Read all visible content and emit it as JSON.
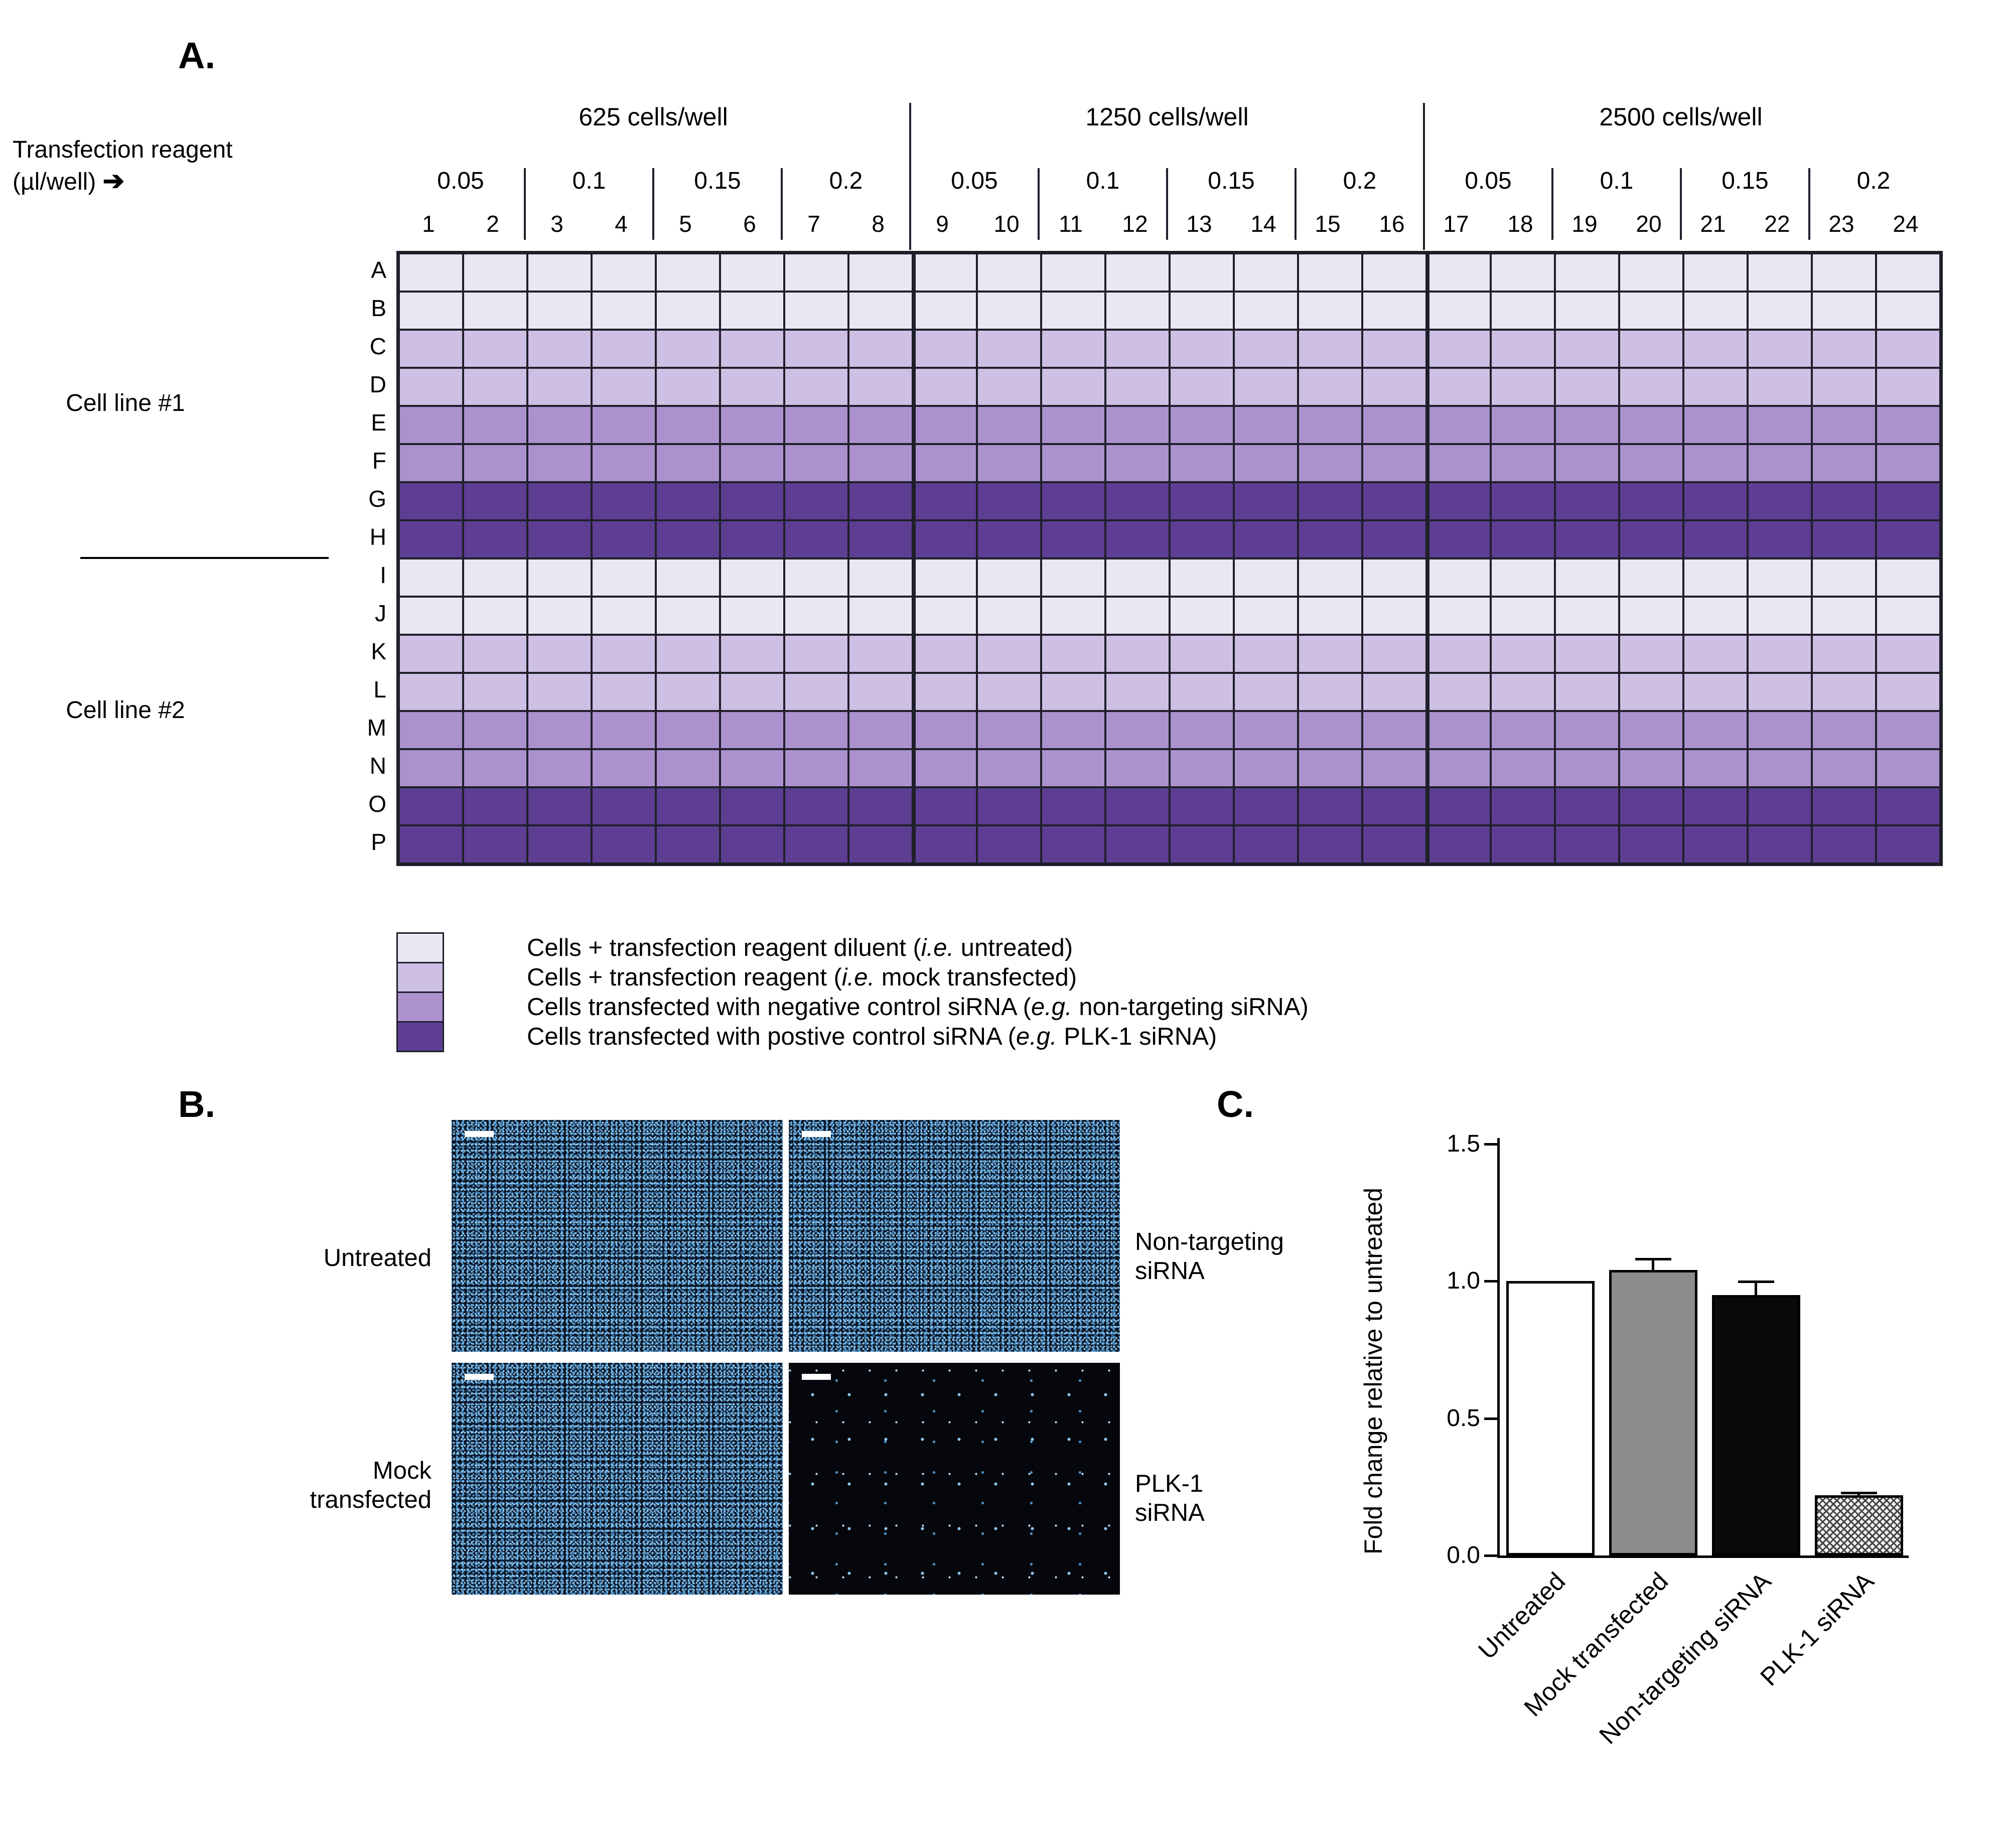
{
  "panelA": {
    "label": "A.",
    "reagent_label_line1": "Transfection reagent",
    "reagent_label_line2": "(µl/well)",
    "reagent_arrow": "➔",
    "cell_line_labels": [
      "Cell line #1",
      "Cell line #2"
    ],
    "category_colors": {
      "untreated": "#EAE6F4",
      "mock": "#CEC0E4",
      "negative_control": "#AB92CE",
      "positive_control": "#5D3E92"
    },
    "legend": [
      {
        "color_key": "untreated",
        "pre": "Cells + transfection reagent diluent (",
        "italic": "i.e.",
        "post": " untreated)"
      },
      {
        "color_key": "mock",
        "pre": "Cells + transfection reagent (",
        "italic": "i.e.",
        "post": " mock transfected)"
      },
      {
        "color_key": "negative_control",
        "pre": "Cells transfected with negative control siRNA (",
        "italic": "e.g.",
        "post": " non-targeting siRNA)"
      },
      {
        "color_key": "positive_control",
        "pre": "Cells transfected with postive control siRNA (",
        "italic": "e.g.",
        "post": " PLK-1 siRNA)"
      }
    ]
  },
  "panelB": {
    "label": "B.",
    "left_labels": [
      {
        "lines": [
          "Untreated"
        ]
      },
      {
        "lines": [
          "Mock",
          "transfected"
        ]
      }
    ],
    "right_labels": [
      {
        "lines": [
          "Non-targeting",
          "siRNA"
        ]
      },
      {
        "lines": [
          "PLK-1",
          "siRNA"
        ]
      }
    ],
    "images": [
      {
        "name": "untreated",
        "density": "dense"
      },
      {
        "name": "non-targeting-sirna",
        "density": "dense"
      },
      {
        "name": "mock-transfected",
        "density": "dense"
      },
      {
        "name": "plk1-sirna",
        "density": "sparse"
      }
    ]
  },
  "panelC": {
    "label": "C."
  },
  "chart_data": [
    {
      "type": "heatmap",
      "rows": [
        "A",
        "B",
        "C",
        "D",
        "E",
        "F",
        "G",
        "H",
        "I",
        "J",
        "K",
        "L",
        "M",
        "N",
        "O",
        "P"
      ],
      "columns": [
        1,
        2,
        3,
        4,
        5,
        6,
        7,
        8,
        9,
        10,
        11,
        12,
        13,
        14,
        15,
        16,
        17,
        18,
        19,
        20,
        21,
        22,
        23,
        24
      ],
      "density_groups": [
        "625 cells/well",
        "1250 cells/well",
        "2500 cells/well"
      ],
      "reagent_volumes_ul_per_well": [
        "0.05",
        "0.1",
        "0.15",
        "0.2"
      ],
      "row_conditions": [
        "untreated",
        "untreated",
        "mock",
        "mock",
        "negative_control",
        "negative_control",
        "positive_control",
        "positive_control",
        "untreated",
        "untreated",
        "mock",
        "mock",
        "negative_control",
        "negative_control",
        "positive_control",
        "positive_control"
      ],
      "row_group_labels": [
        "Cell line #1",
        "Cell line #2"
      ]
    },
    {
      "type": "bar",
      "categories": [
        "Untreated",
        "Mock transfected",
        "Non-targeting siRNA",
        "PLK-1 siRNA"
      ],
      "values": [
        1.0,
        1.04,
        0.95,
        0.22
      ],
      "errors": [
        0,
        0.04,
        0.05,
        0.01
      ],
      "bar_styles": [
        "white",
        "gray",
        "black",
        "hatched"
      ],
      "ylabel": "Fold change relative to untreated",
      "ylim": [
        0,
        1.5
      ],
      "yticks": [
        "0.0",
        "0.5",
        "1.0",
        "1.5"
      ],
      "grid": false,
      "legend_position": "none"
    }
  ]
}
